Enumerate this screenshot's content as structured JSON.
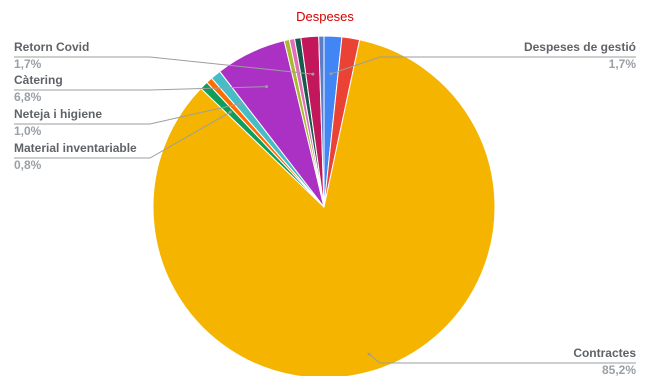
{
  "chart_data": {
    "type": "pie",
    "title": "Despeses",
    "title_color": "#d50000",
    "slices": [
      {
        "label": "Despeses de gestió",
        "value": 1.7,
        "value_label": "1,7%",
        "color": "#4285f4"
      },
      {
        "label": "",
        "value": 1.7,
        "color": "#ea4335"
      },
      {
        "label": "Contractes",
        "value": 85.2,
        "value_label": "85,2%",
        "color": "#f4b400"
      },
      {
        "label": "Material inventariable",
        "value": 0.8,
        "value_label": "0,8%",
        "color": "#0f9d58"
      },
      {
        "label": "",
        "value": 0.6,
        "color": "#ff6d00"
      },
      {
        "label": "Neteja i higiene",
        "value": 1.0,
        "value_label": "1,0%",
        "color": "#46bdc6"
      },
      {
        "label": "Càtering",
        "value": 6.8,
        "value_label": "6,8%",
        "color": "#ab30c4"
      },
      {
        "label": "",
        "value": 0.5,
        "color": "#abb92d"
      },
      {
        "label": "",
        "value": 0.5,
        "color": "#e06fb7"
      },
      {
        "label": "",
        "value": 0.6,
        "color": "#185a4c"
      },
      {
        "label": "Retorn Covid",
        "value": 1.7,
        "value_label": "1,7%",
        "color": "#c2185b"
      },
      {
        "label": "",
        "value": 0.5,
        "color": "#5c7cc4"
      }
    ],
    "start_angle_deg": 0,
    "legend": "none",
    "labels_position": "outside-with-leader-lines"
  }
}
